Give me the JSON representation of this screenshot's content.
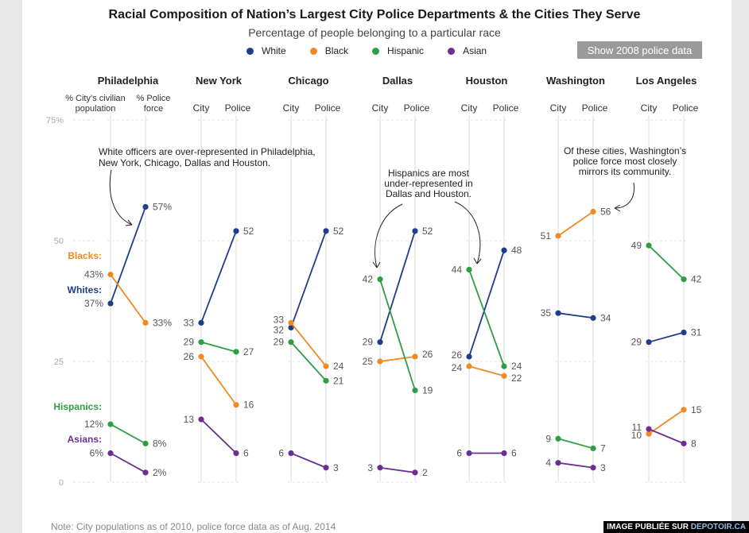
{
  "title": "Racial Composition of Nation’s Largest City Police Departments & the Cities They Serve",
  "subtitle": "Percentage of people belonging to a particular race",
  "legend": [
    {
      "label": "White",
      "color": "#1f3d8a"
    },
    {
      "label": "Black",
      "color": "#f08a24"
    },
    {
      "label": "Hispanic",
      "color": "#2e9e44"
    },
    {
      "label": "Asian",
      "color": "#6a2f8f"
    }
  ],
  "toggle_button": "Show 2008 police data",
  "note": "Note: City populations as of 2010, police force data as of Aug. 2014",
  "watermark": {
    "prefix": "IMAGE PUBLIÉE SUR ",
    "brand": "DEPOTOIR.CA"
  },
  "chart_data": {
    "type": "line",
    "y_axis": {
      "ticks": [
        0,
        25,
        50,
        75
      ],
      "tick_labels": [
        "0",
        "25",
        "50",
        "75%"
      ],
      "range": [
        0,
        75
      ]
    },
    "colors": {
      "White": "#1f3d8a",
      "Black": "#f08a24",
      "Hispanic": "#2e9e44",
      "Asian": "#6a2f8f"
    },
    "first_panel_axis_labels": [
      "% City’s civilian population",
      "% Police force"
    ],
    "axis_labels": [
      "City",
      "Police"
    ],
    "panels": [
      {
        "city": "Philadelphia",
        "series": [
          {
            "name": "White",
            "city": 37,
            "police": 57,
            "city_label": "37%",
            "police_label": "57%"
          },
          {
            "name": "Black",
            "city": 43,
            "police": 33,
            "city_label": "43%",
            "police_label": "33%"
          },
          {
            "name": "Hispanic",
            "city": 12,
            "police": 8,
            "city_label": "12%",
            "police_label": "8%"
          },
          {
            "name": "Asian",
            "city": 6,
            "police": 2,
            "city_label": "6%",
            "police_label": "2%"
          }
        ]
      },
      {
        "city": "New York",
        "series": [
          {
            "name": "White",
            "city": 33,
            "police": 52,
            "city_label": "33",
            "police_label": "52"
          },
          {
            "name": "Black",
            "city": 26,
            "police": 16,
            "city_label": "26",
            "police_label": "16"
          },
          {
            "name": "Hispanic",
            "city": 29,
            "police": 27,
            "city_label": "29",
            "police_label": "27"
          },
          {
            "name": "Asian",
            "city": 13,
            "police": 6,
            "city_label": "13",
            "police_label": "6"
          }
        ]
      },
      {
        "city": "Chicago",
        "series": [
          {
            "name": "White",
            "city": 32,
            "police": 52,
            "city_label": "32",
            "police_label": "52"
          },
          {
            "name": "Black",
            "city": 33,
            "police": 24,
            "city_label": "33",
            "police_label": "24"
          },
          {
            "name": "Hispanic",
            "city": 29,
            "police": 21,
            "city_label": "29",
            "police_label": "21"
          },
          {
            "name": "Asian",
            "city": 6,
            "police": 3,
            "city_label": "6",
            "police_label": "3"
          }
        ]
      },
      {
        "city": "Dallas",
        "series": [
          {
            "name": "White",
            "city": 29,
            "police": 52,
            "city_label": "29",
            "police_label": "52"
          },
          {
            "name": "Black",
            "city": 25,
            "police": 26,
            "city_label": "25",
            "police_label": "26"
          },
          {
            "name": "Hispanic",
            "city": 42,
            "police": 19,
            "city_label": "42",
            "police_label": "19"
          },
          {
            "name": "Asian",
            "city": 3,
            "police": 2,
            "city_label": "3",
            "police_label": "2"
          }
        ]
      },
      {
        "city": "Houston",
        "series": [
          {
            "name": "White",
            "city": 26,
            "police": 48,
            "city_label": "26",
            "police_label": "48"
          },
          {
            "name": "Black",
            "city": 24,
            "police": 22,
            "city_label": "24",
            "police_label": "22"
          },
          {
            "name": "Hispanic",
            "city": 44,
            "police": 24,
            "city_label": "44",
            "police_label": "24"
          },
          {
            "name": "Asian",
            "city": 6,
            "police": 6,
            "city_label": "6",
            "police_label": "6"
          }
        ]
      },
      {
        "city": "Washington",
        "series": [
          {
            "name": "White",
            "city": 35,
            "police": 34,
            "city_label": "35",
            "police_label": "34"
          },
          {
            "name": "Black",
            "city": 51,
            "police": 56,
            "city_label": "51",
            "police_label": "56"
          },
          {
            "name": "Hispanic",
            "city": 9,
            "police": 7,
            "city_label": "9",
            "police_label": "7"
          },
          {
            "name": "Asian",
            "city": 4,
            "police": 3,
            "city_label": "4",
            "police_label": "3"
          }
        ]
      },
      {
        "city": "Los Angeles",
        "series": [
          {
            "name": "White",
            "city": 29,
            "police": 31,
            "city_label": "29",
            "police_label": "31"
          },
          {
            "name": "Black",
            "city": 10,
            "police": 15,
            "city_label": "10",
            "police_label": "15"
          },
          {
            "name": "Hispanic",
            "city": 49,
            "police": 42,
            "city_label": "49",
            "police_label": "42"
          },
          {
            "name": "Asian",
            "city": 11,
            "police": 8,
            "city_label": "11",
            "police_label": "8"
          }
        ]
      }
    ],
    "race_labels": [
      {
        "name": "Blacks:",
        "color": "#f08a24"
      },
      {
        "name": "Whites:",
        "color": "#1f3d8a"
      },
      {
        "name": "Hispanics:",
        "color": "#2e9e44"
      },
      {
        "name": "Asians:",
        "color": "#6a2f8f"
      }
    ],
    "annotations": [
      {
        "lines": [
          "White officers are over-represented in Philadelphia,",
          "New York, Chicago, Dallas and Houston."
        ]
      },
      {
        "lines": [
          "Hispanics are most",
          "under-represented in",
          "Dallas and Houston."
        ]
      },
      {
        "lines": [
          "Of these cities, Washington’s",
          "police force most closely",
          "mirrors its community."
        ]
      }
    ]
  }
}
